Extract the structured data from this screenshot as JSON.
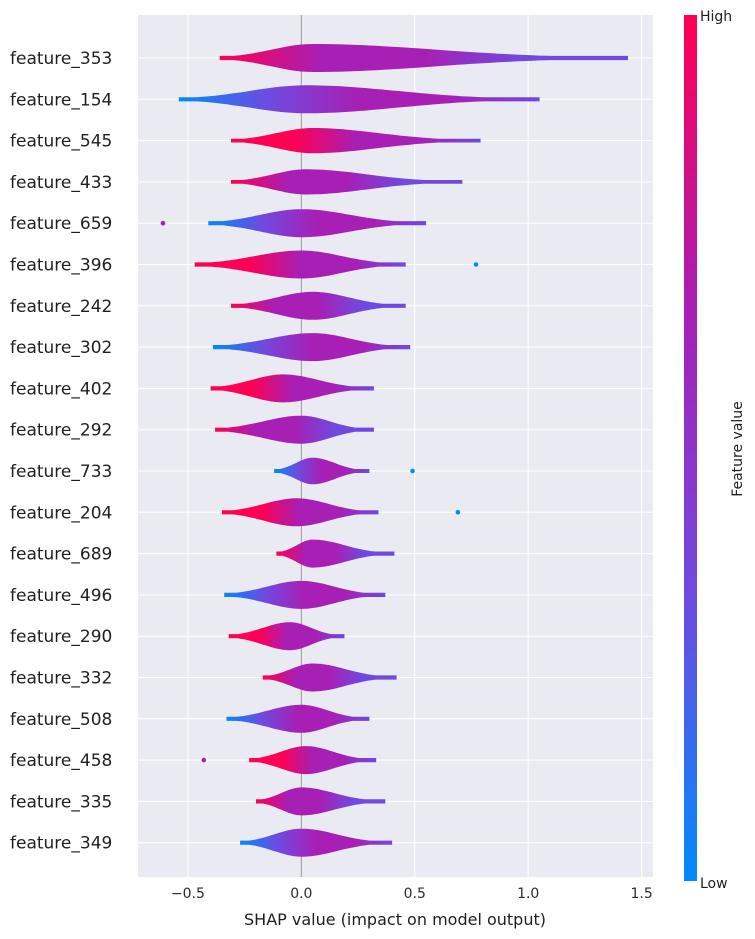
{
  "chart_data": {
    "type": "violin",
    "xlabel": "SHAP value (impact on model output)",
    "xlim": [
      -0.72,
      1.55
    ],
    "xticks": [
      -0.5,
      0.0,
      0.5,
      1.0,
      1.5
    ],
    "xtick_labels": [
      "−0.5",
      "0.0",
      "0.5",
      "1.0",
      "1.5"
    ],
    "grid": true,
    "colorbar": {
      "label": "Feature value",
      "high_label": "High",
      "low_label": "Low",
      "colors": [
        "#008bfb",
        "#6f4ae0",
        "#a81fb5",
        "#ff0052"
      ]
    },
    "features": [
      {
        "name": "feature_353",
        "min": -0.36,
        "max": 1.44,
        "peak": 0.05,
        "width": 1.0,
        "outliers": []
      },
      {
        "name": "feature_154",
        "min": -0.54,
        "max": 1.05,
        "peak": 0.02,
        "width": 1.0,
        "outliers": []
      },
      {
        "name": "feature_545",
        "min": -0.31,
        "max": 0.79,
        "peak": 0.05,
        "width": 0.9,
        "outliers": []
      },
      {
        "name": "feature_433",
        "min": -0.31,
        "max": 0.71,
        "peak": 0.02,
        "width": 0.9,
        "outliers": []
      },
      {
        "name": "feature_659",
        "min": -0.41,
        "max": 0.55,
        "peak": 0.0,
        "width": 1.0,
        "outliers": [
          -0.61
        ]
      },
      {
        "name": "feature_396",
        "min": -0.47,
        "max": 0.46,
        "peak": 0.0,
        "width": 1.0,
        "outliers": [
          0.77
        ]
      },
      {
        "name": "feature_242",
        "min": -0.31,
        "max": 0.46,
        "peak": 0.05,
        "width": 1.0,
        "outliers": []
      },
      {
        "name": "feature_302",
        "min": -0.39,
        "max": 0.48,
        "peak": 0.05,
        "width": 1.0,
        "outliers": []
      },
      {
        "name": "feature_402",
        "min": -0.4,
        "max": 0.32,
        "peak": -0.08,
        "width": 1.0,
        "outliers": []
      },
      {
        "name": "feature_292",
        "min": -0.38,
        "max": 0.32,
        "peak": 0.0,
        "width": 1.0,
        "outliers": []
      },
      {
        "name": "feature_733",
        "min": -0.12,
        "max": 0.3,
        "peak": 0.05,
        "width": 0.95,
        "outliers": [
          0.49
        ]
      },
      {
        "name": "feature_204",
        "min": -0.35,
        "max": 0.34,
        "peak": -0.02,
        "width": 1.0,
        "outliers": [
          0.69
        ]
      },
      {
        "name": "feature_689",
        "min": -0.11,
        "max": 0.41,
        "peak": 0.05,
        "width": 1.0,
        "outliers": []
      },
      {
        "name": "feature_496",
        "min": -0.34,
        "max": 0.37,
        "peak": 0.0,
        "width": 1.0,
        "outliers": []
      },
      {
        "name": "feature_290",
        "min": -0.32,
        "max": 0.19,
        "peak": -0.05,
        "width": 1.0,
        "outliers": []
      },
      {
        "name": "feature_332",
        "min": -0.17,
        "max": 0.42,
        "peak": 0.05,
        "width": 1.0,
        "outliers": []
      },
      {
        "name": "feature_508",
        "min": -0.33,
        "max": 0.3,
        "peak": 0.0,
        "width": 1.0,
        "outliers": []
      },
      {
        "name": "feature_458",
        "min": -0.23,
        "max": 0.33,
        "peak": 0.02,
        "width": 1.0,
        "outliers": [
          -0.43
        ]
      },
      {
        "name": "feature_335",
        "min": -0.2,
        "max": 0.37,
        "peak": 0.0,
        "width": 1.0,
        "outliers": []
      },
      {
        "name": "feature_349",
        "min": -0.27,
        "max": 0.4,
        "peak": 0.0,
        "width": 1.0,
        "outliers": []
      }
    ]
  }
}
